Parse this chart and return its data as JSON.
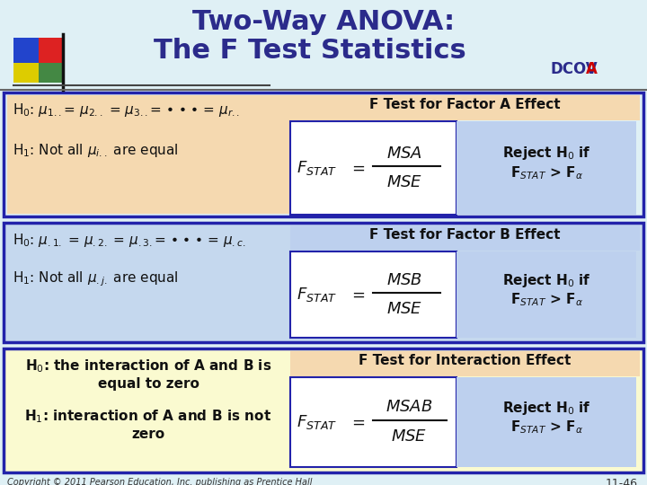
{
  "title_line1": "Two-Way ANOVA:",
  "title_line2": "The F Test Statistics",
  "title_color": "#2B2B8B",
  "dcov_color_dcov": "#2B2B8B",
  "dcov_color_a": "#CC0000",
  "bg_color": "#DFF0F5",
  "box_border_color": "#2222AA",
  "header_bg_factorA": "#F5D9B0",
  "header_bg_factorB": "#BDD0EE",
  "header_bg_interaction": "#F5D9B0",
  "formula_bg": "#FFFFFF",
  "reject_bg": "#BDD0EE",
  "left_bg_factorA": "#F5D9B0",
  "left_bg_factorB": "#C5D8EE",
  "left_bg_interaction": "#FAFAD0",
  "outer_bg_factorA": "#DFF0F5",
  "outer_bg_factorB": "#C5D8EE",
  "outer_bg_interaction": "#FAFAD0",
  "text_color_dark": "#111111",
  "copyright": "Copyright © 2011 Pearson Education, Inc. publishing as Prentice Hall",
  "slide_number": "11-46"
}
